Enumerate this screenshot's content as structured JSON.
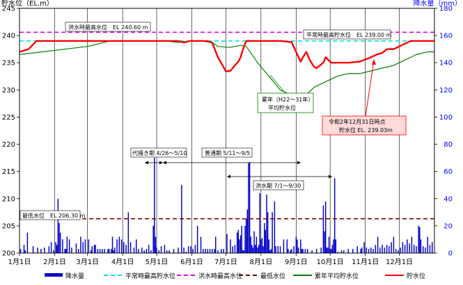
{
  "chart_data": {
    "type": "line+bar",
    "ylabel_left": "貯水位（EL.m）",
    "ylabel_right": "降水量（mm）",
    "y_left_range": [
      200,
      245
    ],
    "y_left_ticks": [
      "200",
      "205",
      "210",
      "215",
      "220",
      "225",
      "230",
      "235",
      "240",
      "245"
    ],
    "y_right_range": [
      0,
      180
    ],
    "y_right_ticks": [
      "0",
      "20",
      "40",
      "60",
      "80",
      "100",
      "120",
      "140",
      "160",
      "180"
    ],
    "x_range_days": [
      0,
      366
    ],
    "x_ticks": [
      {
        "label": "1月1日",
        "day": 0
      },
      {
        "label": "2月1日",
        "day": 31
      },
      {
        "label": "3月1日",
        "day": 60
      },
      {
        "label": "4月1日",
        "day": 91
      },
      {
        "label": "5月1日",
        "day": 121
      },
      {
        "label": "6月1日",
        "day": 152
      },
      {
        "label": "7月1日",
        "day": 182
      },
      {
        "label": "8月1日",
        "day": 213
      },
      {
        "label": "9月1日",
        "day": 244
      },
      {
        "label": "10月1日",
        "day": 274
      },
      {
        "label": "11月1日",
        "day": 305
      },
      {
        "label": "12月1日",
        "day": 335
      }
    ],
    "reference_lines": [
      {
        "name": "平常時最高貯水位",
        "value": 239.0,
        "color": "#00e5e5",
        "dash": "6,4"
      },
      {
        "name": "洪水時最高水位",
        "value": 240.6,
        "color": "#e000e0",
        "dash": "6,4"
      },
      {
        "name": "最低水位",
        "value": 206.3,
        "color": "#800000",
        "dash": "6,4"
      }
    ],
    "series": [
      {
        "name": "累年平均貯水位",
        "color": "#008000",
        "points": [
          [
            0,
            236.5
          ],
          [
            20,
            237
          ],
          [
            40,
            237.5
          ],
          [
            60,
            238
          ],
          [
            80,
            239
          ],
          [
            100,
            239
          ],
          [
            120,
            239
          ],
          [
            130,
            239
          ],
          [
            140,
            238.7
          ],
          [
            150,
            239
          ],
          [
            160,
            239
          ],
          [
            170,
            238.7
          ],
          [
            175,
            238
          ],
          [
            185,
            237.8
          ],
          [
            195,
            238.2
          ],
          [
            200,
            238
          ],
          [
            210,
            235
          ],
          [
            220,
            232.5
          ],
          [
            230,
            230
          ],
          [
            240,
            229
          ],
          [
            245,
            227.5
          ],
          [
            250,
            228.5
          ],
          [
            260,
            230.5
          ],
          [
            270,
            231.5
          ],
          [
            280,
            232.5
          ],
          [
            290,
            233
          ],
          [
            300,
            233
          ],
          [
            310,
            233.5
          ],
          [
            320,
            234
          ],
          [
            330,
            234.5
          ],
          [
            340,
            235.5
          ],
          [
            350,
            236.5
          ],
          [
            360,
            237
          ],
          [
            366,
            237
          ]
        ]
      },
      {
        "name": "貯水位",
        "color": "#ff0000",
        "points": [
          [
            0,
            237
          ],
          [
            8,
            237.5
          ],
          [
            15,
            239
          ],
          [
            30,
            239
          ],
          [
            50,
            239
          ],
          [
            80,
            239
          ],
          [
            100,
            239
          ],
          [
            130,
            239
          ],
          [
            140,
            239
          ],
          [
            145,
            238.7
          ],
          [
            150,
            239
          ],
          [
            165,
            239
          ],
          [
            170,
            238.7
          ],
          [
            175,
            236
          ],
          [
            180,
            234.2
          ],
          [
            182,
            233.4
          ],
          [
            186,
            233.5
          ],
          [
            190,
            234.5
          ],
          [
            193,
            235.2
          ],
          [
            195,
            236
          ],
          [
            198,
            238
          ],
          [
            200,
            239
          ],
          [
            202,
            239
          ],
          [
            210,
            239
          ],
          [
            220,
            239
          ],
          [
            230,
            239
          ],
          [
            240,
            238.8
          ],
          [
            244,
            237
          ],
          [
            248,
            235.2
          ],
          [
            250,
            236
          ],
          [
            253,
            237
          ],
          [
            256,
            235.5
          ],
          [
            260,
            234.2
          ],
          [
            262,
            234
          ],
          [
            268,
            235
          ],
          [
            270,
            236
          ],
          [
            275,
            235
          ],
          [
            290,
            235
          ],
          [
            300,
            235.2
          ],
          [
            305,
            235.6
          ],
          [
            310,
            236
          ],
          [
            315,
            236.5
          ],
          [
            320,
            236.8
          ],
          [
            324,
            237.5
          ],
          [
            330,
            237.5
          ],
          [
            335,
            238
          ],
          [
            340,
            238.5
          ],
          [
            345,
            239
          ],
          [
            366,
            239
          ]
        ]
      }
    ],
    "precip_name": "降水量",
    "precip_color": "#0000cc",
    "precip": [
      [
        1,
        3
      ],
      [
        4,
        6
      ],
      [
        5,
        2
      ],
      [
        7,
        15
      ],
      [
        12,
        5
      ],
      [
        16,
        4
      ],
      [
        19,
        3
      ],
      [
        22,
        4
      ],
      [
        26,
        5
      ],
      [
        28,
        8
      ],
      [
        30,
        2
      ],
      [
        32,
        8
      ],
      [
        33,
        6
      ],
      [
        34,
        40
      ],
      [
        35,
        22
      ],
      [
        36,
        15
      ],
      [
        38,
        10
      ],
      [
        40,
        3
      ],
      [
        41,
        3
      ],
      [
        42,
        12
      ],
      [
        44,
        10
      ],
      [
        46,
        4
      ],
      [
        50,
        7
      ],
      [
        52,
        3
      ],
      [
        54,
        12
      ],
      [
        56,
        8
      ],
      [
        58,
        10
      ],
      [
        61,
        10
      ],
      [
        63,
        2
      ],
      [
        64,
        5
      ],
      [
        66,
        6
      ],
      [
        67,
        6
      ],
      [
        69,
        3
      ],
      [
        71,
        3
      ],
      [
        73,
        3
      ],
      [
        75,
        3
      ],
      [
        78,
        3
      ],
      [
        79,
        3
      ],
      [
        81,
        3
      ],
      [
        82,
        12
      ],
      [
        83,
        2
      ],
      [
        84,
        4
      ],
      [
        86,
        10
      ],
      [
        88,
        12
      ],
      [
        90,
        10
      ],
      [
        92,
        8
      ],
      [
        94,
        6
      ],
      [
        96,
        30
      ],
      [
        98,
        8
      ],
      [
        101,
        4
      ],
      [
        103,
        10
      ],
      [
        105,
        3
      ],
      [
        108,
        4
      ],
      [
        110,
        2
      ],
      [
        112,
        3
      ],
      [
        114,
        6
      ],
      [
        116,
        2
      ],
      [
        118,
        20
      ],
      [
        119,
        70
      ],
      [
        120,
        12
      ],
      [
        121,
        4
      ],
      [
        123,
        2
      ],
      [
        125,
        5
      ],
      [
        128,
        6
      ],
      [
        130,
        2
      ],
      [
        132,
        2
      ],
      [
        136,
        3
      ],
      [
        140,
        4
      ],
      [
        143,
        50
      ],
      [
        145,
        4
      ],
      [
        147,
        1
      ],
      [
        149,
        5
      ],
      [
        151,
        5
      ],
      [
        153,
        3
      ],
      [
        155,
        6
      ],
      [
        157,
        20
      ],
      [
        160,
        12
      ],
      [
        162,
        3
      ],
      [
        164,
        3
      ],
      [
        166,
        3
      ],
      [
        168,
        3
      ],
      [
        170,
        3
      ],
      [
        172,
        3
      ],
      [
        173,
        12
      ],
      [
        175,
        2
      ],
      [
        178,
        3
      ],
      [
        180,
        3
      ],
      [
        183,
        14
      ],
      [
        186,
        10
      ],
      [
        188,
        5
      ],
      [
        190,
        6
      ],
      [
        192,
        15
      ],
      [
        193,
        17
      ],
      [
        194,
        10
      ],
      [
        195,
        13
      ],
      [
        196,
        20
      ],
      [
        197,
        2
      ],
      [
        198,
        2
      ],
      [
        199,
        20
      ],
      [
        200,
        25
      ],
      [
        201,
        32
      ],
      [
        202,
        66
      ],
      [
        203,
        67
      ],
      [
        204,
        12
      ],
      [
        205,
        6
      ],
      [
        206,
        4
      ],
      [
        207,
        16
      ],
      [
        208,
        6
      ],
      [
        209,
        12
      ],
      [
        210,
        4
      ],
      [
        211,
        6
      ],
      [
        212,
        44
      ],
      [
        213,
        10
      ],
      [
        214,
        11
      ],
      [
        215,
        5
      ],
      [
        216,
        22
      ],
      [
        217,
        17
      ],
      [
        218,
        43
      ],
      [
        219,
        30
      ],
      [
        220,
        10
      ],
      [
        221,
        2
      ],
      [
        222,
        3
      ],
      [
        223,
        30
      ],
      [
        225,
        38
      ],
      [
        226,
        5
      ],
      [
        228,
        5
      ],
      [
        230,
        5
      ],
      [
        233,
        10
      ],
      [
        236,
        10
      ],
      [
        237,
        3
      ],
      [
        239,
        2
      ],
      [
        240,
        3
      ],
      [
        242,
        5
      ],
      [
        244,
        12
      ],
      [
        245,
        10
      ],
      [
        246,
        4
      ],
      [
        248,
        10
      ],
      [
        249,
        3
      ],
      [
        250,
        3
      ],
      [
        252,
        3
      ],
      [
        254,
        3
      ],
      [
        258,
        2
      ],
      [
        262,
        3
      ],
      [
        266,
        4
      ],
      [
        268,
        35
      ],
      [
        269,
        16
      ],
      [
        270,
        38
      ],
      [
        271,
        4
      ],
      [
        272,
        4
      ],
      [
        273,
        12
      ],
      [
        274,
        3
      ],
      [
        275,
        3
      ],
      [
        276,
        6
      ],
      [
        277,
        10
      ],
      [
        278,
        55
      ],
      [
        279,
        10
      ],
      [
        281,
        1
      ],
      [
        284,
        2
      ],
      [
        286,
        2
      ],
      [
        290,
        3
      ],
      [
        294,
        3
      ],
      [
        298,
        5
      ],
      [
        301,
        3
      ],
      [
        302,
        4
      ],
      [
        304,
        8
      ],
      [
        306,
        4
      ],
      [
        308,
        3
      ],
      [
        310,
        4
      ],
      [
        312,
        3
      ],
      [
        314,
        6
      ],
      [
        316,
        12
      ],
      [
        318,
        4
      ],
      [
        320,
        6
      ],
      [
        322,
        4
      ],
      [
        324,
        6
      ],
      [
        326,
        5
      ],
      [
        328,
        8
      ],
      [
        330,
        12
      ],
      [
        332,
        3
      ],
      [
        334,
        2
      ],
      [
        336,
        4
      ],
      [
        338,
        8
      ],
      [
        340,
        6
      ],
      [
        342,
        10
      ],
      [
        344,
        7
      ],
      [
        346,
        12
      ],
      [
        348,
        6
      ],
      [
        350,
        5
      ],
      [
        352,
        20
      ],
      [
        353,
        19
      ],
      [
        354,
        10
      ],
      [
        356,
        5
      ],
      [
        358,
        4
      ],
      [
        360,
        12
      ],
      [
        362,
        6
      ],
      [
        364,
        8
      ]
    ],
    "annotations": [
      {
        "text": "洪水時最高水位　EL 240.60 m"
      },
      {
        "text": "平常時最高貯水位　EL 239.00 m"
      },
      {
        "text": "最低水位　EL 206.30 m"
      },
      {
        "text": "累年（H22～31年）"
      },
      {
        "text": "平均貯水位"
      },
      {
        "text": "令和2年12月31日時点"
      },
      {
        "text": "貯水位 EL. 239.03m"
      },
      {
        "text": "代掻き期 4/26～5/10"
      },
      {
        "text": "普通期 5/11～9/5"
      },
      {
        "text": "洪水期 7/1～9/30"
      }
    ],
    "legend": [
      {
        "label": "降水量",
        "kind": "bar",
        "color": "#0000cc"
      },
      {
        "label": "平常時最高貯水位",
        "kind": "line",
        "color": "#00e5e5",
        "dash": "6,4"
      },
      {
        "label": "洪水時最高水位",
        "kind": "line",
        "color": "#e000e0",
        "dash": "6,4"
      },
      {
        "label": "最低水位",
        "kind": "line",
        "color": "#800000",
        "dash": "6,4"
      },
      {
        "label": "累年平均貯水位",
        "kind": "line",
        "color": "#008000"
      },
      {
        "label": "貯水位",
        "kind": "line",
        "color": "#ff0000"
      }
    ],
    "legend_position": "bottom",
    "grid": "vertical at month starts"
  }
}
